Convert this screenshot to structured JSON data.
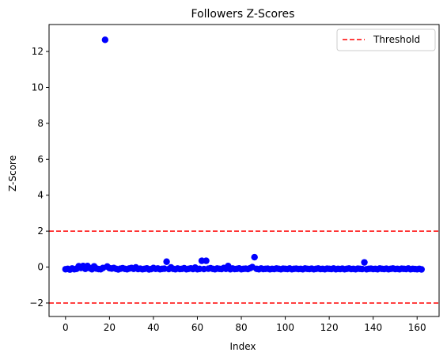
{
  "chart_data": {
    "type": "scatter",
    "title": "Followers Z-Scores",
    "xlabel": "Index",
    "ylabel": "Z-Score",
    "xlim": [
      -7.5,
      170
    ],
    "ylim": [
      -2.75,
      13.5
    ],
    "xticks": [
      0,
      20,
      40,
      60,
      80,
      100,
      120,
      140,
      160
    ],
    "yticks": [
      -2,
      0,
      2,
      4,
      6,
      8,
      10,
      12
    ],
    "grid": false,
    "legend_position": "top-right",
    "colors": {
      "points": "#0000ff",
      "threshold": "#ff0000"
    },
    "series": [
      {
        "x": [
          0,
          1,
          2,
          3,
          4,
          5,
          6,
          7,
          8,
          9,
          10,
          11,
          12,
          13,
          14,
          15,
          16,
          17,
          18,
          19,
          20,
          21,
          22,
          23,
          24,
          25,
          26,
          27,
          28,
          29,
          30,
          31,
          32,
          33,
          34,
          35,
          36,
          37,
          38,
          39,
          40,
          41,
          42,
          43,
          44,
          45,
          46,
          47,
          48,
          49,
          50,
          51,
          52,
          53,
          54,
          55,
          56,
          57,
          58,
          59,
          60,
          61,
          62,
          63,
          64,
          65,
          66,
          67,
          68,
          69,
          70,
          71,
          72,
          73,
          74,
          75,
          76,
          77,
          78,
          79,
          80,
          81,
          82,
          83,
          84,
          85,
          86,
          87,
          88,
          89,
          90,
          91,
          92,
          93,
          94,
          95,
          96,
          97,
          98,
          99,
          100,
          101,
          102,
          103,
          104,
          105,
          106,
          107,
          108,
          109,
          110,
          111,
          112,
          113,
          114,
          115,
          116,
          117,
          118,
          119,
          120,
          121,
          122,
          123,
          124,
          125,
          126,
          127,
          128,
          129,
          130,
          131,
          132,
          133,
          134,
          135,
          136,
          137,
          138,
          139,
          140,
          141,
          142,
          143,
          144,
          145,
          146,
          147,
          148,
          149,
          150,
          151,
          152,
          153,
          154,
          155,
          156,
          157,
          158,
          159,
          160,
          161,
          162
        ],
        "y": [
          -0.12,
          -0.1,
          -0.14,
          -0.08,
          -0.12,
          -0.1,
          0.05,
          -0.05,
          0.06,
          -0.1,
          0.06,
          -0.06,
          -0.12,
          0.04,
          -0.08,
          -0.11,
          -0.12,
          -0.05,
          12.65,
          0.03,
          -0.06,
          -0.08,
          -0.05,
          -0.1,
          -0.13,
          -0.09,
          -0.06,
          -0.1,
          -0.12,
          -0.08,
          -0.05,
          -0.1,
          -0.02,
          -0.11,
          -0.09,
          -0.12,
          -0.1,
          -0.07,
          -0.13,
          -0.11,
          -0.05,
          -0.1,
          -0.08,
          -0.12,
          -0.1,
          -0.09,
          0.3,
          -0.11,
          -0.02,
          -0.1,
          -0.12,
          -0.08,
          -0.11,
          -0.1,
          -0.06,
          -0.12,
          -0.1,
          -0.07,
          -0.11,
          -0.03,
          -0.12,
          -0.1,
          0.35,
          -0.11,
          0.35,
          -0.09,
          -0.06,
          -0.1,
          -0.12,
          -0.08,
          -0.1,
          -0.11,
          -0.05,
          -0.1,
          0.06,
          -0.12,
          -0.08,
          -0.11,
          -0.1,
          -0.07,
          -0.12,
          -0.1,
          -0.09,
          -0.11,
          -0.06,
          0.0,
          0.55,
          -0.1,
          -0.12,
          -0.08,
          -0.11,
          -0.1,
          -0.09,
          -0.12,
          -0.1,
          -0.11,
          -0.08,
          -0.1,
          -0.12,
          -0.09,
          -0.1,
          -0.11,
          -0.08,
          -0.12,
          -0.1,
          -0.09,
          -0.11,
          -0.1,
          -0.12,
          -0.08,
          -0.1,
          -0.11,
          -0.09,
          -0.12,
          -0.1,
          -0.08,
          -0.11,
          -0.1,
          -0.12,
          -0.09,
          -0.1,
          -0.11,
          -0.08,
          -0.12,
          -0.1,
          -0.11,
          -0.09,
          -0.12,
          -0.1,
          -0.08,
          -0.11,
          -0.1,
          -0.12,
          -0.09,
          -0.1,
          -0.11,
          0.26,
          -0.12,
          -0.1,
          -0.09,
          -0.11,
          -0.1,
          -0.12,
          -0.08,
          -0.1,
          -0.11,
          -0.09,
          -0.12,
          -0.1,
          -0.08,
          -0.11,
          -0.1,
          -0.12,
          -0.09,
          -0.1,
          -0.11,
          -0.08,
          -0.12,
          -0.1,
          -0.11,
          -0.12,
          -0.1,
          -0.13
        ]
      }
    ],
    "thresholds": {
      "name": "Threshold",
      "values": [
        2,
        -2
      ]
    }
  }
}
